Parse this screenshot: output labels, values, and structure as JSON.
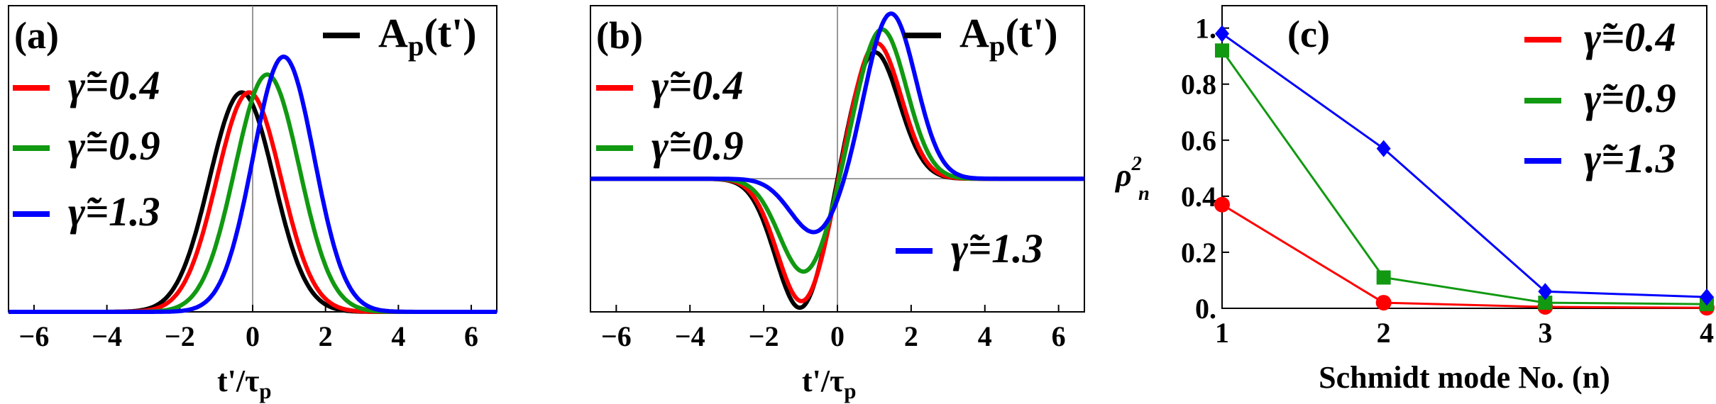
{
  "chart_data": [
    {
      "panel": "(a)",
      "type": "line",
      "xlabel": "t'/τ",
      "xlabel_sub": "p",
      "xlim": [
        -6.7,
        6.7
      ],
      "ylim": [
        0,
        1.2
      ],
      "xticks": [
        -6,
        -4,
        -2,
        0,
        2,
        4,
        6
      ],
      "legend": [
        {
          "label": "A",
          "sub": "p",
          "tail": "(t')",
          "color": "#000000"
        },
        {
          "label": "γ̃=0.4",
          "color": "#ff0000"
        },
        {
          "label": "γ̃=0.9",
          "color": "#119911"
        },
        {
          "label": "γ̃=1.3",
          "color": "#0000ff"
        }
      ],
      "series": [
        {
          "color": "#000000",
          "center": -0.3,
          "width": 1.0,
          "amp": 0.86
        },
        {
          "color": "#ff0000",
          "center": -0.1,
          "width": 1.0,
          "amp": 0.86
        },
        {
          "color": "#119911",
          "center": 0.4,
          "width": 1.0,
          "amp": 0.93
        },
        {
          "color": "#0000ff",
          "center": 0.85,
          "width": 0.95,
          "amp": 1.0
        }
      ]
    },
    {
      "panel": "(b)",
      "type": "line",
      "xlabel": "t'/τ",
      "xlabel_sub": "p",
      "xlim": [
        -6.7,
        6.7
      ],
      "ylim": [
        -1.0,
        1.3
      ],
      "xticks": [
        -6,
        -4,
        -2,
        0,
        2,
        4,
        6
      ],
      "legend": [
        {
          "label": "A",
          "sub": "p",
          "tail": "(t')",
          "color": "#000000"
        },
        {
          "label": "γ̃=0.4",
          "color": "#ff0000"
        },
        {
          "label": "γ̃=0.9",
          "color": "#119911"
        },
        {
          "label": "γ̃=1.3",
          "color": "#0000ff"
        }
      ],
      "series": [
        {
          "color": "#000000",
          "neg_amp": 1.0,
          "pos_amp": 0.98,
          "neg_center": -1.0,
          "pos_center": 1.0
        },
        {
          "color": "#ff0000",
          "neg_amp": 0.95,
          "pos_amp": 1.05,
          "neg_center": -0.95,
          "pos_center": 1.05
        },
        {
          "color": "#119911",
          "neg_amp": 0.72,
          "pos_amp": 1.15,
          "neg_center": -0.9,
          "pos_center": 1.2
        },
        {
          "color": "#0000ff",
          "neg_amp": 0.42,
          "pos_amp": 1.27,
          "neg_center": -0.6,
          "pos_center": 1.45
        }
      ]
    },
    {
      "panel": "(c)",
      "type": "line",
      "xlabel": "Schmidt mode No. (n)",
      "ylabel": "ρ",
      "ylabel_sup": "2",
      "ylabel_sub": "n",
      "xlim": [
        1,
        4
      ],
      "ylim": [
        0,
        1.08
      ],
      "xticks": [
        1,
        2,
        3,
        4
      ],
      "yticks": [
        0.0,
        0.2,
        0.4,
        0.6,
        0.8,
        1.0
      ],
      "ytick_labels": [
        "0.",
        "0.2",
        "0.4",
        "0.6",
        "0.8",
        "1."
      ],
      "legend": [
        {
          "label": "γ̃=0.4",
          "color": "#ff0000"
        },
        {
          "label": "γ̃=0.9",
          "color": "#119911"
        },
        {
          "label": "γ̃=1.3",
          "color": "#0000ff"
        }
      ],
      "series": [
        {
          "name": "γ̃=0.4",
          "color": "#ff0000",
          "marker": "circle",
          "x": [
            1,
            2,
            3,
            4
          ],
          "y": [
            0.37,
            0.02,
            0.005,
            0.002
          ]
        },
        {
          "name": "γ̃=0.9",
          "color": "#119911",
          "marker": "square",
          "x": [
            1,
            2,
            3,
            4
          ],
          "y": [
            0.92,
            0.11,
            0.02,
            0.015
          ]
        },
        {
          "name": "γ̃=1.3",
          "color": "#0000ff",
          "marker": "diamond",
          "x": [
            1,
            2,
            3,
            4
          ],
          "y": [
            0.98,
            0.57,
            0.06,
            0.04
          ]
        }
      ]
    }
  ]
}
